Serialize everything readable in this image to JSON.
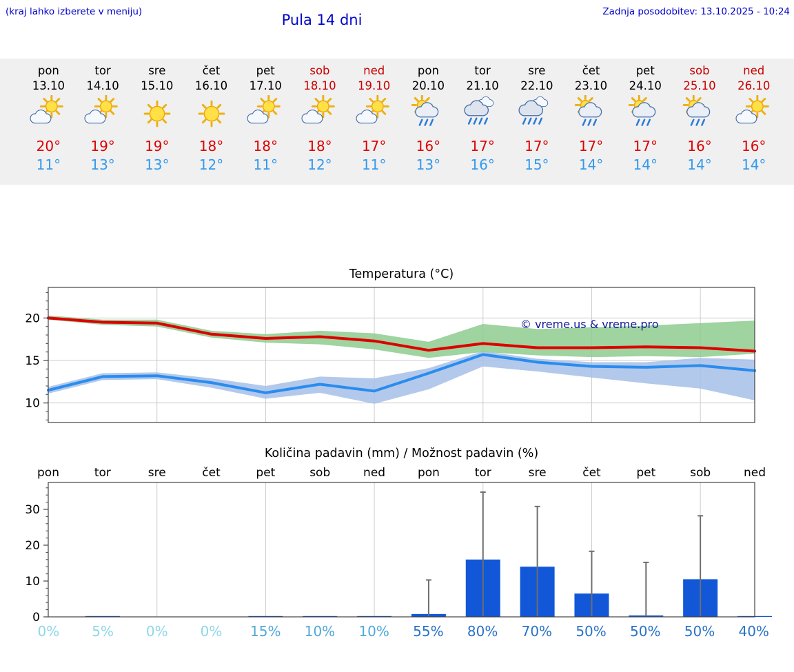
{
  "header": {
    "left_note": "(kraj lahko izberete v meniju)",
    "title": "Pula 14 dni",
    "updated": "Zadnja posodobitev: 13.10.2025 - 10:24"
  },
  "colors": {
    "link_blue": "#0000cc",
    "high_red": "#dd0000",
    "low_blue": "#3399ee",
    "weekend_red": "#cc0000",
    "bar_blue": "#1157d8",
    "whisker_gray": "#6e6e6e",
    "grid_gray": "#cccccc",
    "axis_dark": "#444444",
    "watermark_blue": "#10189b",
    "strip_bg": "#f0f0f0"
  },
  "forecast_days": [
    {
      "day": "pon",
      "date": "13.10",
      "weekend": false,
      "icon": "partly",
      "high": "20°",
      "low": "11°"
    },
    {
      "day": "tor",
      "date": "14.10",
      "weekend": false,
      "icon": "partly",
      "high": "19°",
      "low": "13°"
    },
    {
      "day": "sre",
      "date": "15.10",
      "weekend": false,
      "icon": "sunny",
      "high": "19°",
      "low": "13°"
    },
    {
      "day": "čet",
      "date": "16.10",
      "weekend": false,
      "icon": "sunny",
      "high": "18°",
      "low": "12°"
    },
    {
      "day": "pet",
      "date": "17.10",
      "weekend": false,
      "icon": "partly",
      "high": "18°",
      "low": "11°"
    },
    {
      "day": "sob",
      "date": "18.10",
      "weekend": true,
      "icon": "partly",
      "high": "18°",
      "low": "12°"
    },
    {
      "day": "ned",
      "date": "19.10",
      "weekend": true,
      "icon": "partly",
      "high": "17°",
      "low": "11°"
    },
    {
      "day": "pon",
      "date": "20.10",
      "weekend": false,
      "icon": "sun-rain",
      "high": "16°",
      "low": "13°"
    },
    {
      "day": "tor",
      "date": "21.10",
      "weekend": false,
      "icon": "rain",
      "high": "17°",
      "low": "16°"
    },
    {
      "day": "sre",
      "date": "22.10",
      "weekend": false,
      "icon": "rain",
      "high": "17°",
      "low": "15°"
    },
    {
      "day": "čet",
      "date": "23.10",
      "weekend": false,
      "icon": "sun-rain",
      "high": "17°",
      "low": "14°"
    },
    {
      "day": "pet",
      "date": "24.10",
      "weekend": false,
      "icon": "sun-rain",
      "high": "17°",
      "low": "14°"
    },
    {
      "day": "sob",
      "date": "25.10",
      "weekend": true,
      "icon": "sun-rain",
      "high": "16°",
      "low": "14°"
    },
    {
      "day": "ned",
      "date": "26.10",
      "weekend": true,
      "icon": "partly",
      "high": "16°",
      "low": "14°"
    }
  ],
  "chart_data": [
    {
      "type": "line",
      "title": "Temperatura (°C)",
      "watermark": "© vreme.us & vreme.pro",
      "categories": [
        "pon",
        "tor",
        "sre",
        "čet",
        "pet",
        "sob",
        "ned",
        "pon",
        "tor",
        "sre",
        "čet",
        "pet",
        "sob",
        "ned"
      ],
      "ylim": [
        7.7,
        23.6
      ],
      "yticks": [
        10,
        15,
        20
      ],
      "grid": "vertical-every-2-days",
      "legend": "none",
      "series": [
        {
          "name": "max-temp",
          "color": "#dd0000",
          "values": [
            20.0,
            19.5,
            19.4,
            18.1,
            17.6,
            17.8,
            17.3,
            16.2,
            17.0,
            16.5,
            16.5,
            16.6,
            16.5,
            16.1
          ]
        },
        {
          "name": "min-temp",
          "color": "#2a8cee",
          "values": [
            11.5,
            13.1,
            13.2,
            12.4,
            11.2,
            12.2,
            11.4,
            13.5,
            15.7,
            14.8,
            14.3,
            14.2,
            14.4,
            13.8
          ]
        }
      ],
      "bands": [
        {
          "name": "min-range",
          "color": "#a6c0e8",
          "upper": [
            11.9,
            13.5,
            13.6,
            12.9,
            12.0,
            13.1,
            12.9,
            14.1,
            16.1,
            15.2,
            14.8,
            14.8,
            15.3,
            15.1
          ],
          "lower": [
            11.1,
            12.7,
            12.8,
            11.8,
            10.5,
            11.2,
            9.9,
            11.6,
            14.3,
            13.7,
            13.0,
            12.3,
            11.7,
            10.3
          ]
        },
        {
          "name": "max-range",
          "color": "#8ecb8e",
          "upper": [
            20.3,
            19.8,
            19.8,
            18.5,
            18.1,
            18.5,
            18.2,
            17.2,
            19.3,
            18.7,
            18.9,
            19.1,
            19.4,
            19.7
          ],
          "lower": [
            19.8,
            19.2,
            19.0,
            17.7,
            17.1,
            16.9,
            16.3,
            15.3,
            16.0,
            15.6,
            15.4,
            15.5,
            15.4,
            15.8
          ]
        }
      ]
    },
    {
      "type": "bar",
      "title": "Količina padavin (mm) / Možnost padavin (%)",
      "categories": [
        "pon",
        "tor",
        "sre",
        "čet",
        "pet",
        "sob",
        "ned",
        "pon",
        "tor",
        "sre",
        "čet",
        "pet",
        "sob",
        "ned"
      ],
      "values": [
        0,
        0.1,
        0,
        0,
        0.15,
        0.1,
        0.1,
        0.8,
        16,
        14,
        6.5,
        0.4,
        10.5,
        0.1
      ],
      "whisker_max": [
        0,
        0,
        0,
        0,
        0,
        0,
        0,
        10.3,
        34.8,
        30.8,
        18.3,
        15.2,
        28.2,
        0
      ],
      "prob_labels": [
        "0%",
        "5%",
        "0%",
        "0%",
        "15%",
        "10%",
        "10%",
        "55%",
        "80%",
        "70%",
        "50%",
        "50%",
        "50%",
        "40%"
      ],
      "prob_colors": [
        "#8ed7e8",
        "#8ed7e8",
        "#8ed7e8",
        "#8ed7e8",
        "#4fa8da",
        "#4fa8da",
        "#4fa8da",
        "#2a72c8",
        "#2a72c8",
        "#2a72c8",
        "#2a72c8",
        "#2a72c8",
        "#2a72c8",
        "#2a72c8"
      ],
      "ylim": [
        0,
        37.5
      ],
      "yticks": [
        0,
        10,
        20,
        30
      ],
      "grid": "vertical-every-2-days"
    }
  ]
}
